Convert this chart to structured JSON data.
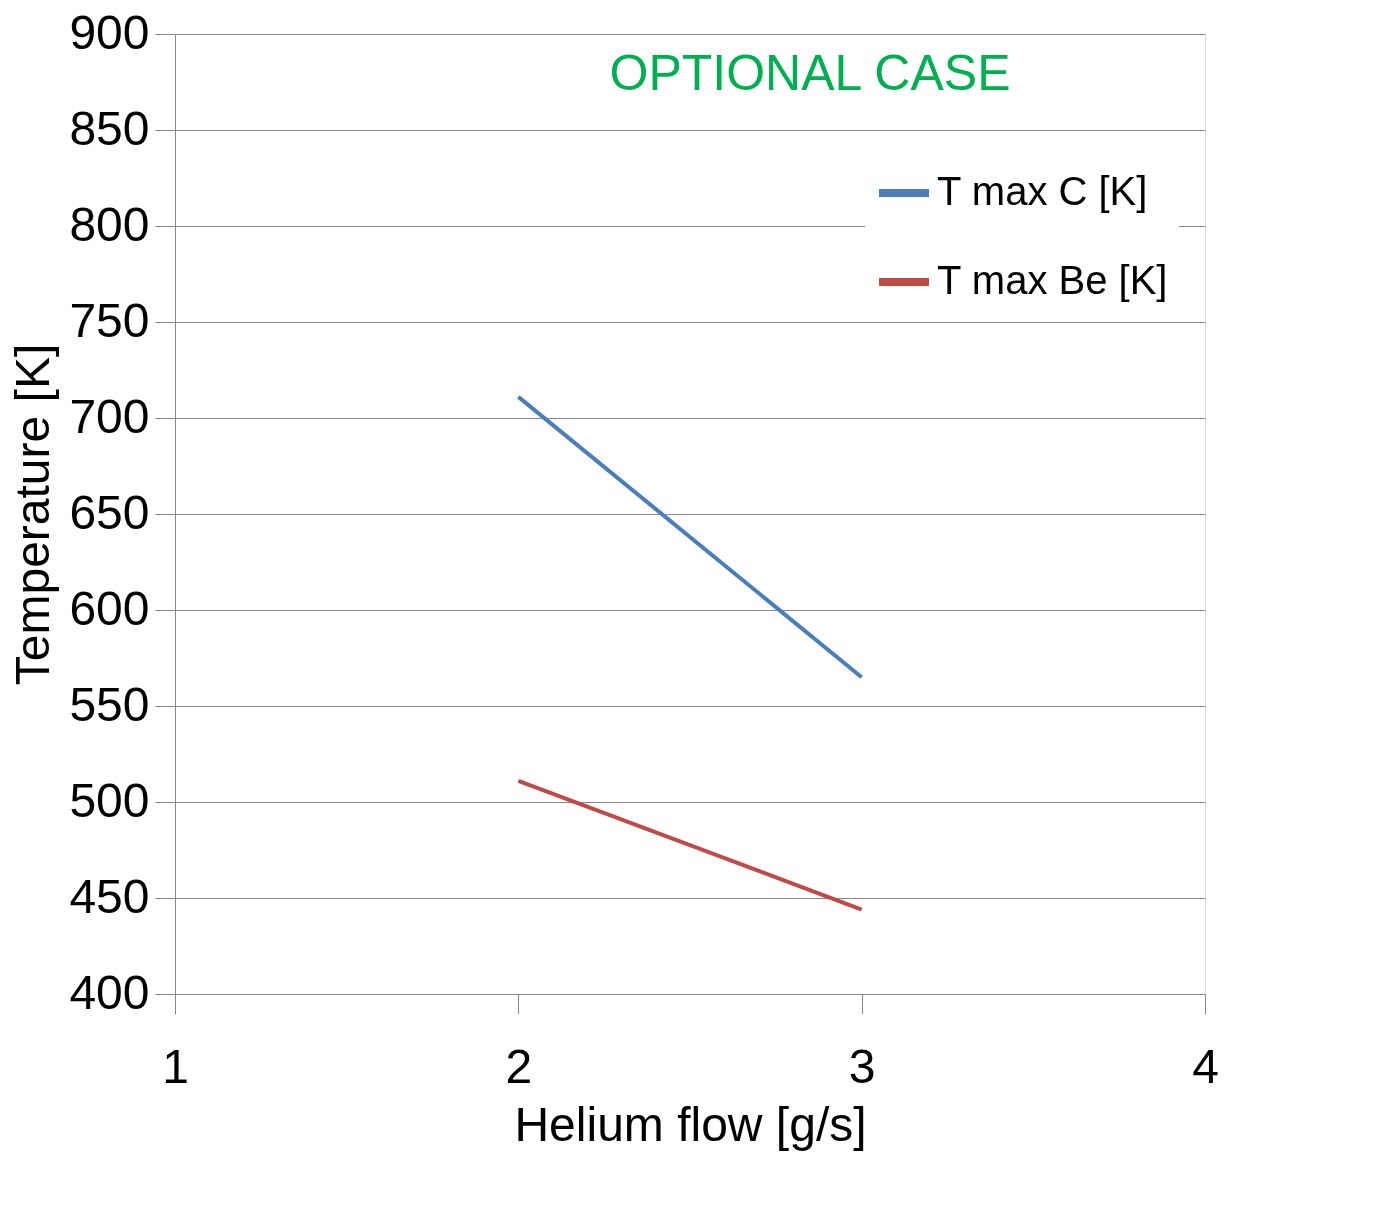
{
  "chart_data": {
    "type": "line",
    "title": "OPTIONAL CASE",
    "xlabel": "Helium flow [g/s]",
    "ylabel": "Temperature [K]",
    "xlim": [
      1,
      4
    ],
    "xticks": [
      1,
      2,
      3,
      4
    ],
    "ylim": [
      400,
      900
    ],
    "yticks": [
      400,
      450,
      500,
      550,
      600,
      650,
      700,
      750,
      800,
      850,
      900
    ],
    "x": [
      2,
      3
    ],
    "grid": "y",
    "legend": "top right",
    "marker": "none",
    "line_style": "solid",
    "series": [
      {
        "name": "T max C [K]",
        "color": "#4a7ebb",
        "values": [
          711,
          565
        ]
      },
      {
        "name": "T max Be [K]",
        "color": "#be4b48",
        "values": [
          511,
          444
        ]
      }
    ]
  }
}
